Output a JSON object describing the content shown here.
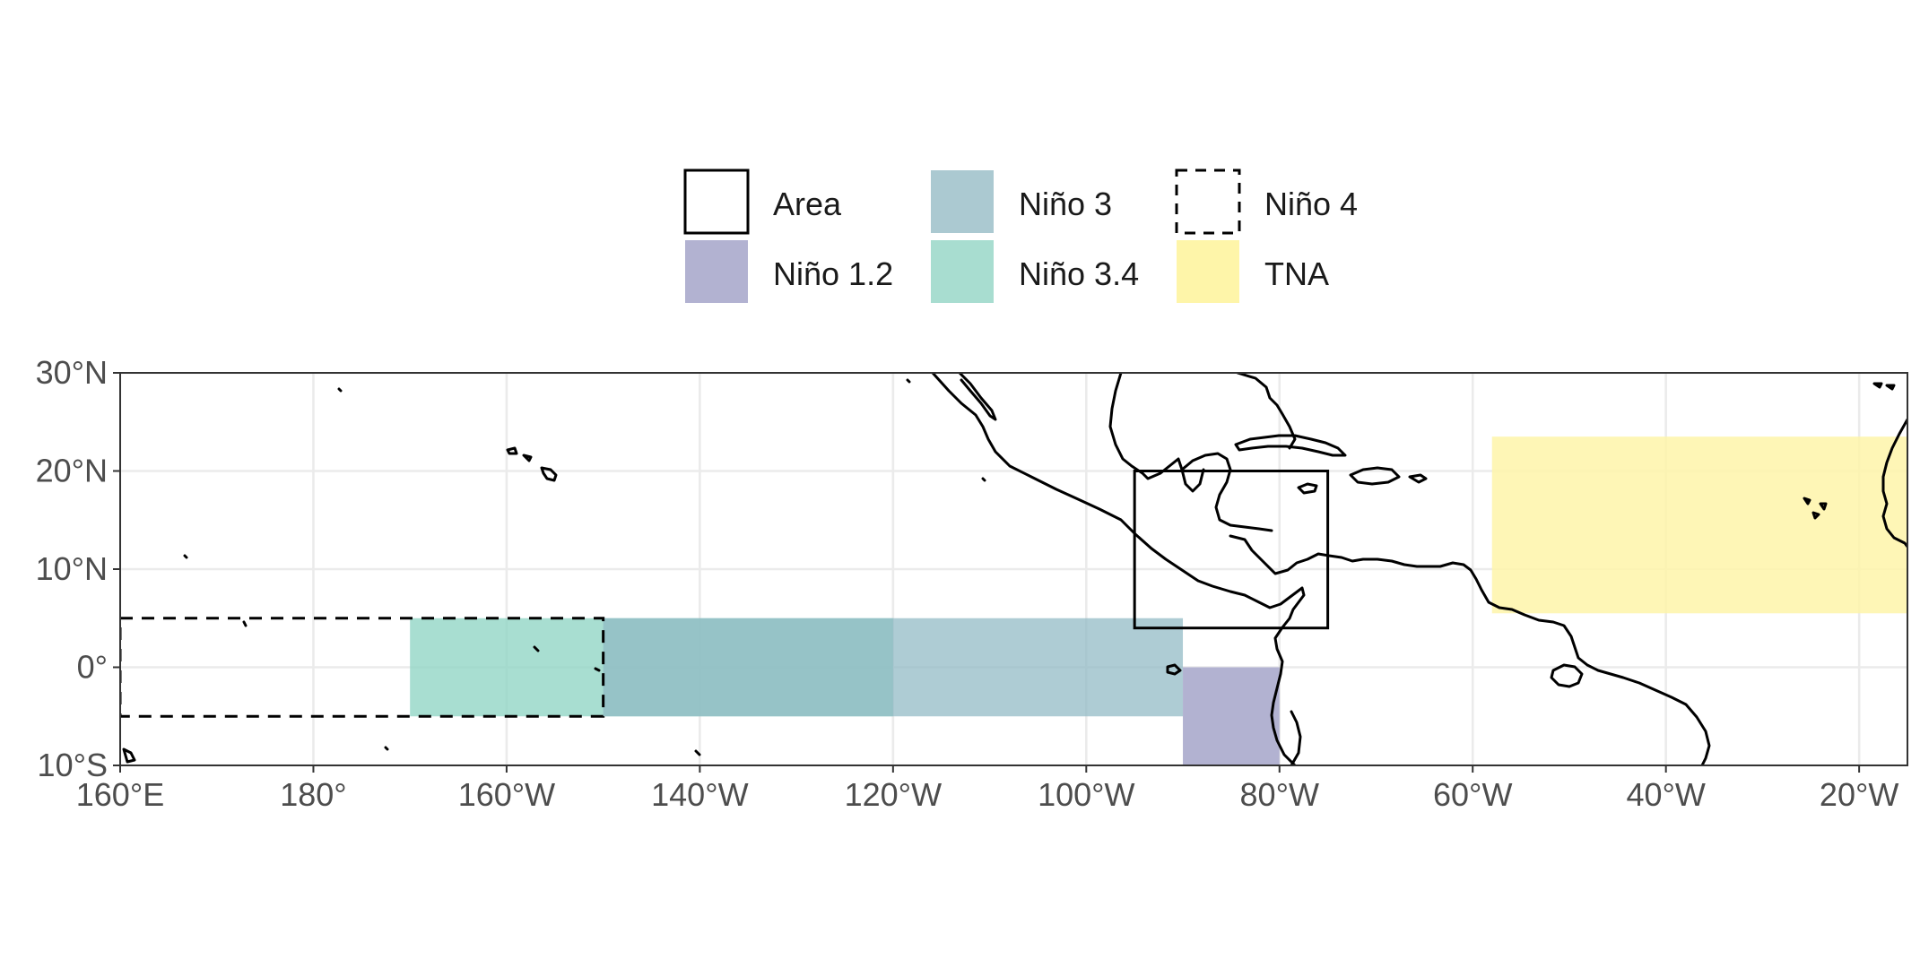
{
  "legend": {
    "items": [
      {
        "key": "area",
        "label": "Area",
        "style": "outline-solid",
        "color": "#000000"
      },
      {
        "key": "nino12",
        "label": "Niño 1.2",
        "style": "fill",
        "color": "#b2b2d1"
      },
      {
        "key": "nino3",
        "label": "Niño 3",
        "style": "fill",
        "color": "#abc9d1"
      },
      {
        "key": "nino34",
        "label": "Niño 3.4",
        "style": "fill",
        "color": "#a8ddd0"
      },
      {
        "key": "nino4",
        "label": "Niño 4",
        "style": "outline-dashed",
        "color": "#000000"
      },
      {
        "key": "tna",
        "label": "TNA",
        "style": "fill",
        "color": "#fef5a9"
      }
    ]
  },
  "map": {
    "projection": "equirectangular",
    "lon_range": [
      160,
      345
    ],
    "lat_range": [
      -10,
      30
    ],
    "grid": true,
    "x_ticks": [
      {
        "lon": 160,
        "label": "160°E"
      },
      {
        "lon": 180,
        "label": "180°"
      },
      {
        "lon": 200,
        "label": "160°W"
      },
      {
        "lon": 220,
        "label": "140°W"
      },
      {
        "lon": 240,
        "label": "120°W"
      },
      {
        "lon": 260,
        "label": "100°W"
      },
      {
        "lon": 280,
        "label": "80°W"
      },
      {
        "lon": 300,
        "label": "60°W"
      },
      {
        "lon": 320,
        "label": "40°W"
      },
      {
        "lon": 340,
        "label": "20°W"
      }
    ],
    "y_ticks": [
      {
        "lat": 30,
        "label": "30°N"
      },
      {
        "lat": 20,
        "label": "20°N"
      },
      {
        "lat": 10,
        "label": "10°N"
      },
      {
        "lat": 0,
        "label": "0°"
      },
      {
        "lat": -10,
        "label": "10°S"
      }
    ],
    "regions": [
      {
        "key": "tna",
        "name": "TNA",
        "lon": [
          302,
          345
        ],
        "lat": [
          5.5,
          23.5
        ],
        "fill": "#fef5a9",
        "opacity": 0.85
      },
      {
        "key": "nino34",
        "name": "Niño 3.4",
        "lon": [
          190,
          240
        ],
        "lat": [
          -5,
          5
        ],
        "fill": "#8fd5c4",
        "opacity": 0.78
      },
      {
        "key": "nino3",
        "name": "Niño 3",
        "lon": [
          210,
          270
        ],
        "lat": [
          -5,
          5
        ],
        "fill": "#8fb8c3",
        "opacity": 0.72
      },
      {
        "key": "nino12",
        "name": "Niño 1.2",
        "lon": [
          270,
          280
        ],
        "lat": [
          -10,
          0
        ],
        "fill": "#b2b2d1",
        "opacity": 1.0
      },
      {
        "key": "nino4",
        "name": "Niño 4",
        "lon": [
          160,
          210
        ],
        "lat": [
          -5,
          5
        ],
        "style": "dashed"
      },
      {
        "key": "area",
        "name": "Area",
        "lon": [
          265,
          285
        ],
        "lat": [
          4,
          20
        ],
        "style": "solid"
      }
    ]
  }
}
